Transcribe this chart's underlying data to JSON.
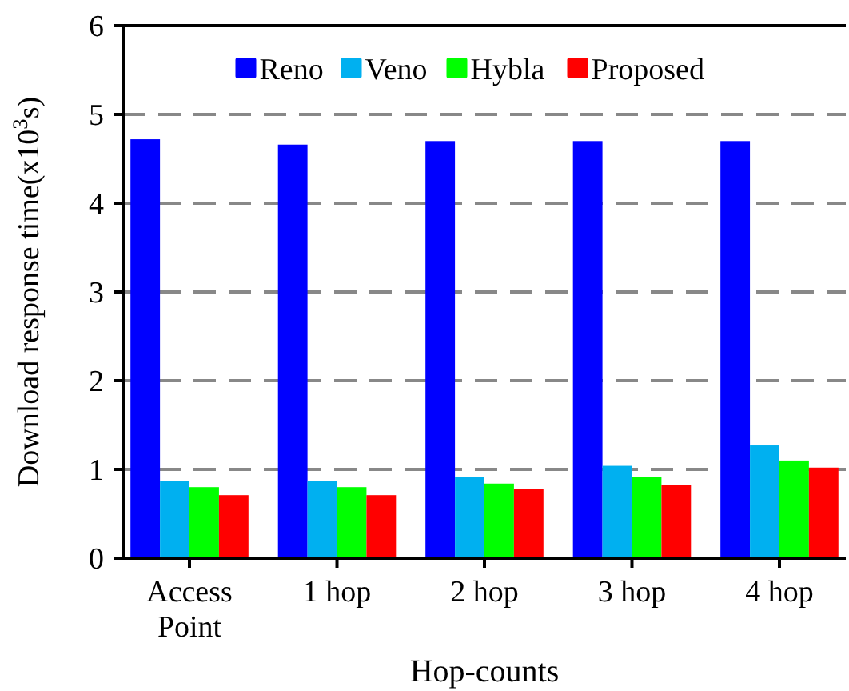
{
  "chart_data": {
    "type": "bar",
    "xlabel": "Hop-counts",
    "ylabel": "Download response time(x10$^{3}$s)",
    "categories": [
      "Access Point",
      "1 hop",
      "2 hop",
      "3 hop",
      "4 hop"
    ],
    "series": [
      {
        "name": "Reno",
        "color": "#0000ff",
        "values": [
          4.72,
          4.66,
          4.7,
          4.7,
          4.7
        ]
      },
      {
        "name": "Veno",
        "color": "#00b0f0",
        "values": [
          0.87,
          0.87,
          0.91,
          1.04,
          1.27
        ]
      },
      {
        "name": "Hybla",
        "color": "#00ff00",
        "values": [
          0.8,
          0.8,
          0.84,
          0.91,
          1.1
        ]
      },
      {
        "name": "Proposed",
        "color": "#ff0000",
        "values": [
          0.71,
          0.71,
          0.78,
          0.82,
          1.02
        ]
      }
    ],
    "ylim": [
      0,
      6
    ],
    "yticks": [
      0,
      1,
      2,
      3,
      4,
      5,
      6
    ],
    "grid": "y",
    "legend": "top"
  }
}
